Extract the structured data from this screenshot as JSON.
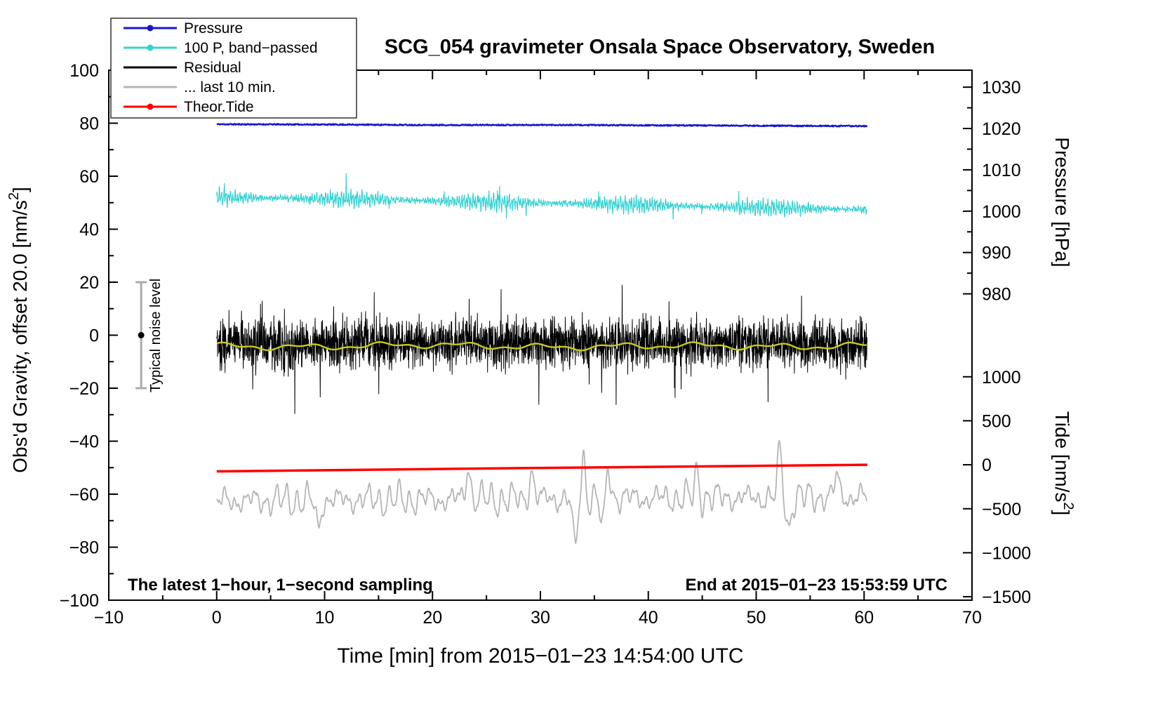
{
  "title": "SCG_054 gravimeter Onsala Space Observatory, Sweden",
  "annotations": {
    "sampling": "The latest 1−hour, 1−second sampling",
    "end_time": "End at 2015−01−23 15:53:59 UTC"
  },
  "legend": [
    {
      "label": "Pressure",
      "color": "#1717cf",
      "marker": "dot"
    },
    {
      "label": "100 P, band−passed",
      "color": "#35d2d2",
      "marker": "dot"
    },
    {
      "label": "Residual",
      "color": "#000000",
      "marker": "none"
    },
    {
      "label": "... last 10 min.",
      "color": "#b5b5b5",
      "marker": "none"
    },
    {
      "label": "Theor.Tide",
      "color": "#ff0000",
      "marker": "dot"
    }
  ],
  "chart_data": {
    "type": "line",
    "title": "SCG_054 gravimeter Onsala Space Observatory, Sweden",
    "x_axis": {
      "label": "Time [min] from 2015−01−23 14:54:00 UTC",
      "range": [
        -10,
        70
      ],
      "major_ticks": [
        -10,
        0,
        10,
        20,
        30,
        40,
        50,
        60,
        70
      ],
      "minor_step": 5
    },
    "y_left": {
      "label_pre": "Obs'd Gravity, offset 20.0 [nm/s",
      "label_sup": "2",
      "label_post": "]",
      "range": [
        -100,
        100
      ],
      "major_ticks": [
        100,
        80,
        60,
        40,
        20,
        0,
        -20,
        -40,
        -60,
        -80,
        -100
      ],
      "minor_step": 10
    },
    "y_right_pressure": {
      "label": "Pressure [hPa]",
      "major_ticks": [
        1030,
        1020,
        1010,
        1000,
        990,
        980
      ],
      "minor_step": 5,
      "gravity_ref": {
        "hpa": 1020,
        "gravity": 78,
        "gravity_per_hpa": 1.56
      }
    },
    "y_right_tide": {
      "label_pre": "Tide [nm/s",
      "label_sup": "2",
      "label_post": "]",
      "major_ticks": [
        1000,
        500,
        0,
        -500,
        -1000,
        -1500
      ],
      "gravity_ref": {
        "tide": 0,
        "gravity": -48.9,
        "gravity_per_unit": 0.0332
      }
    },
    "noise_bar": {
      "x": -7,
      "center": 0,
      "half_range": 20,
      "label": "Typical noise level"
    },
    "series": [
      {
        "name": "Pressure",
        "color": "#1717cf",
        "style": "noisy",
        "width": 2.4,
        "seed": 11,
        "step": 0.05,
        "x_range": [
          0,
          60.3
        ],
        "noise": 0.22,
        "baseline": [
          [
            0,
            79.6
          ],
          [
            10,
            79.5
          ],
          [
            20,
            79.3
          ],
          [
            30,
            79.35
          ],
          [
            40,
            79.2
          ],
          [
            50,
            79.05
          ],
          [
            60.3,
            78.9
          ]
        ],
        "approx_pressure_hpa": [
          1021.0,
          1020.6
        ]
      },
      {
        "name": "100 P, band−passed",
        "color": "#35d2d2",
        "style": "bandpass",
        "width": 1.2,
        "seed": 23,
        "step": 0.03,
        "x_range": [
          0,
          60.3
        ],
        "amp": 3.4,
        "baseline": [
          [
            0,
            52.0
          ],
          [
            15,
            51.3
          ],
          [
            25,
            50.2
          ],
          [
            35,
            49.6
          ],
          [
            45,
            48.6
          ],
          [
            60.3,
            47.4
          ]
        ]
      },
      {
        "name": "Residual",
        "color": "#000000",
        "style": "residual",
        "width": 1,
        "seed": 37,
        "step": 0.02,
        "x_range": [
          0,
          60.3
        ],
        "amp": 11,
        "spike_p": 0.013,
        "spike_min": 7,
        "spike_var": 12,
        "baseline": [
          [
            0,
            -3.4
          ],
          [
            30,
            -3.2
          ],
          [
            60.3,
            -3.4
          ]
        ]
      },
      {
        "name": "Residual smoothed",
        "color": "#c9c91c",
        "style": "smooth",
        "width": 2.4,
        "seed": 51,
        "step": 0.08,
        "x_range": [
          0,
          60.3
        ],
        "baseline": [
          [
            0,
            -4.2
          ],
          [
            20,
            -4.0
          ],
          [
            40,
            -4.3
          ],
          [
            60.3,
            -3.9
          ]
        ]
      },
      {
        "name": "... last 10 min.",
        "color": "#b5b5b5",
        "style": "osc",
        "width": 1.8,
        "seed": 77,
        "step": 0.04,
        "x_range": [
          0,
          60.3
        ],
        "baseline": [
          [
            0,
            -62.5
          ],
          [
            20,
            -62.0
          ],
          [
            40,
            -61.5
          ],
          [
            60.3,
            -61.0
          ]
        ],
        "spikes": [
          {
            "x": 9.4,
            "a": -11
          },
          {
            "x": 23.3,
            "a": 13
          },
          {
            "x": 29.2,
            "a": 11
          },
          {
            "x": 33.2,
            "a": -20
          },
          {
            "x": 34.0,
            "a": 14
          },
          {
            "x": 35.8,
            "a": -12
          },
          {
            "x": 36.3,
            "a": 13
          },
          {
            "x": 44.5,
            "a": 9
          },
          {
            "x": 52.2,
            "a": 17
          },
          {
            "x": 53.0,
            "a": -13
          },
          {
            "x": 57.5,
            "a": 8
          }
        ]
      },
      {
        "name": "Theor.Tide",
        "color": "#ff0000",
        "style": "line",
        "width": 3.5,
        "x_range": [
          0,
          60.3
        ],
        "baseline": [
          [
            0,
            -51.4
          ],
          [
            30,
            -50.1
          ],
          [
            60.3,
            -48.9
          ]
        ],
        "approx_tide_nms2": [
          -75,
          0
        ]
      }
    ]
  }
}
